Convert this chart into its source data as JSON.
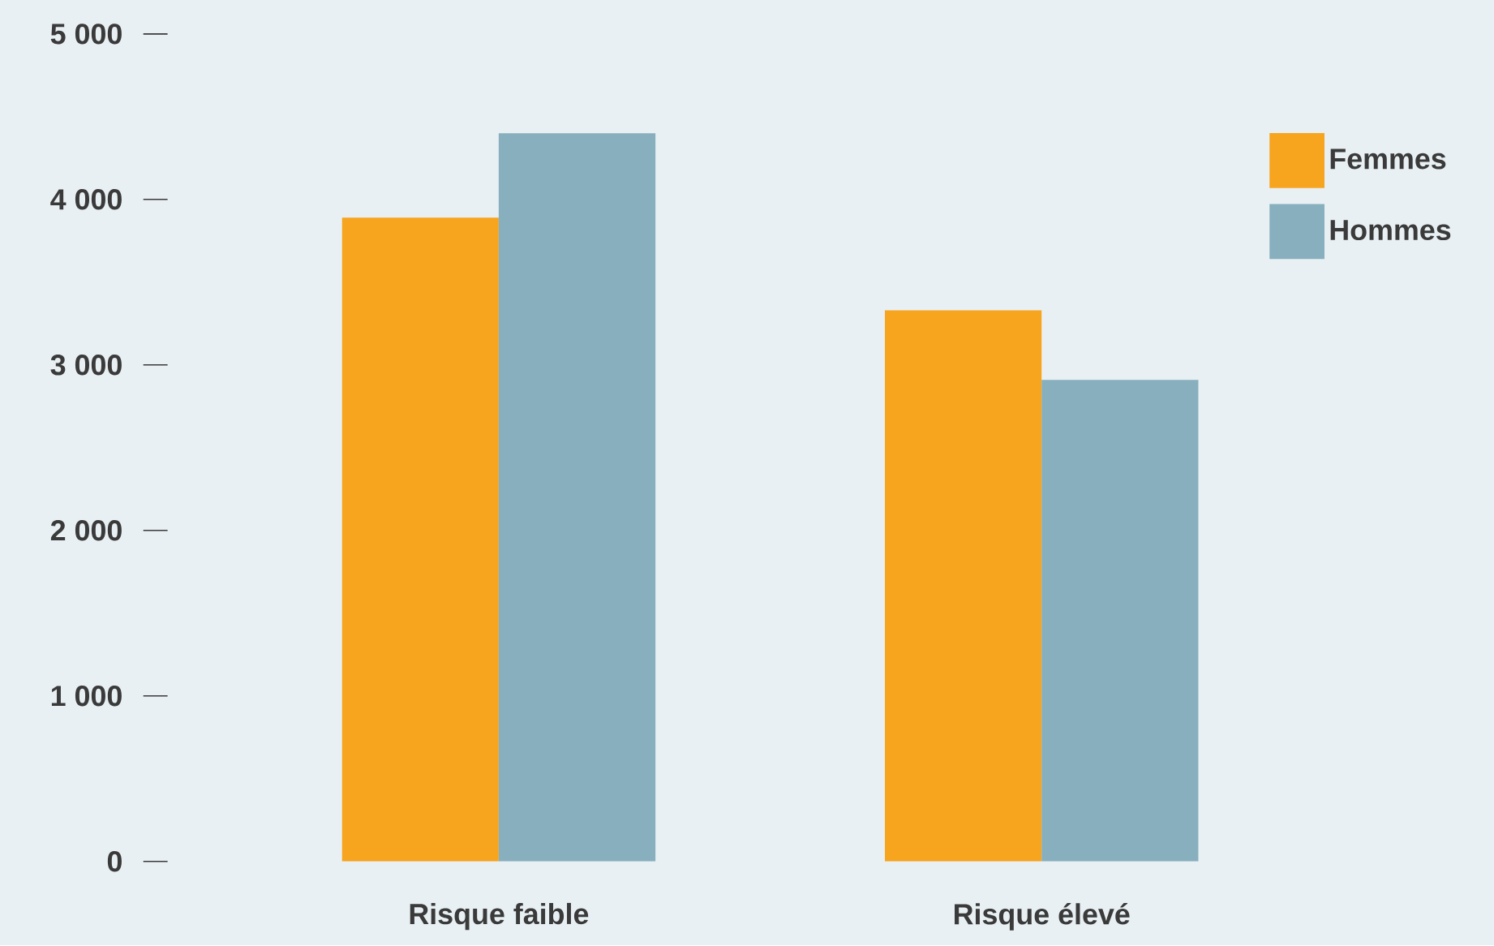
{
  "chart_data": {
    "type": "bar",
    "categories": [
      "Risque faible",
      "Risque élevé"
    ],
    "series": [
      {
        "name": "Femmes",
        "color": "#f7a41e",
        "values": [
          3890,
          3330
        ]
      },
      {
        "name": "Hommes",
        "color": "#88afbd",
        "values": [
          4400,
          2910
        ]
      }
    ],
    "ylim": [
      0,
      5000
    ],
    "yticks": [
      {
        "value": 0,
        "label": "0"
      },
      {
        "value": 1000,
        "label": "1 000"
      },
      {
        "value": 2000,
        "label": "2 000"
      },
      {
        "value": 3000,
        "label": "3 000"
      },
      {
        "value": 4000,
        "label": "4 000"
      },
      {
        "value": 5000,
        "label": "5 000"
      }
    ],
    "grid": false,
    "legend": "top right"
  }
}
